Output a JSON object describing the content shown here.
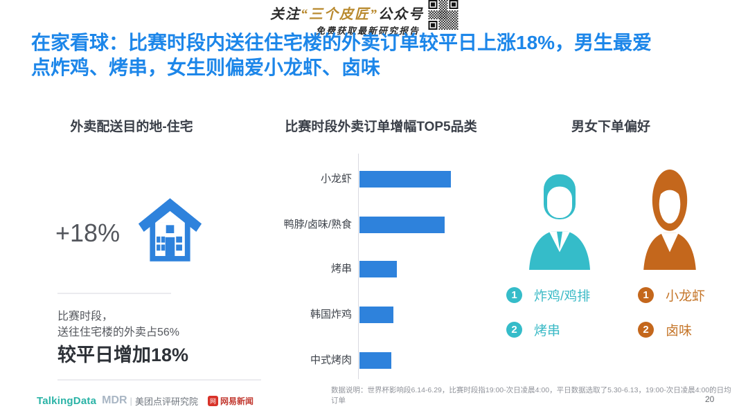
{
  "banner": {
    "line1_prefix": "关注",
    "line1_highlight": "“三个皮匠”",
    "line1_suffix": "公众号",
    "line2": "免费获取最新研究报告"
  },
  "title": "在家看球：比赛时段内送往住宅楼的外卖订单较平日上涨18%，男生最爱点炸鸡、烤串，女生则偏爱小龙虾、卤味",
  "sections": {
    "left": {
      "header": "外卖配送目的地-住宅",
      "stat": "+18%",
      "note_line1": "比赛时段，",
      "note_line2": "送往住宅楼的外卖占56%",
      "note_line3": "较平日增加18%"
    },
    "middle": {
      "header": "比赛时段外卖订单增幅TOP5品类"
    },
    "right": {
      "header": "男女下单偏好",
      "male": {
        "ranks": [
          {
            "num": "1",
            "label": "炸鸡/鸡排"
          },
          {
            "num": "2",
            "label": "烤串"
          }
        ]
      },
      "female": {
        "ranks": [
          {
            "num": "1",
            "label": "小龙虾"
          },
          {
            "num": "2",
            "label": "卤味"
          }
        ]
      }
    }
  },
  "chart_data": {
    "type": "bar",
    "orientation": "horizontal",
    "title": "比赛时段外卖订单增幅TOP5品类",
    "categories": [
      "小龙虾",
      "鸭脖/卤味/熟食",
      "烤串",
      "韩国炸鸡",
      "中式烤肉"
    ],
    "values": [
      100,
      93,
      41,
      37,
      35
    ],
    "value_note": "relative increase, bars unlabeled in source; values estimated from bar lengths (top bar = 100)",
    "xlabel": "",
    "ylabel": "",
    "grid": false,
    "legend": false,
    "bar_color": "#2e82dc"
  },
  "footnote": "数据说明：世界杯影响段6.14-6.29，比赛时段指19:00-次日凌晨4:00，平日数据选取了5.30-6.13，19:00-次日凌晨4:00的日均订单",
  "footer": {
    "logo_talkingdata": "TalkingData",
    "logo_mdr": "MDR",
    "logo_meituan": "美团点评研究院",
    "logo_netease_badge": "网",
    "logo_netease": "网易新闻",
    "page_number": "20"
  },
  "icons": {
    "qr": "qr-code",
    "house": "house-icon",
    "male": "male-person-icon",
    "female": "female-person-icon"
  },
  "colors": {
    "title_blue": "#1c86e9",
    "bar_blue": "#2e82dc",
    "male_cyan": "#35bcc9",
    "female_orange": "#c4671c",
    "banner_gold": "#b98a2f",
    "netease_red": "#d8332a",
    "talkingdata_teal": "#2ab3a6"
  }
}
